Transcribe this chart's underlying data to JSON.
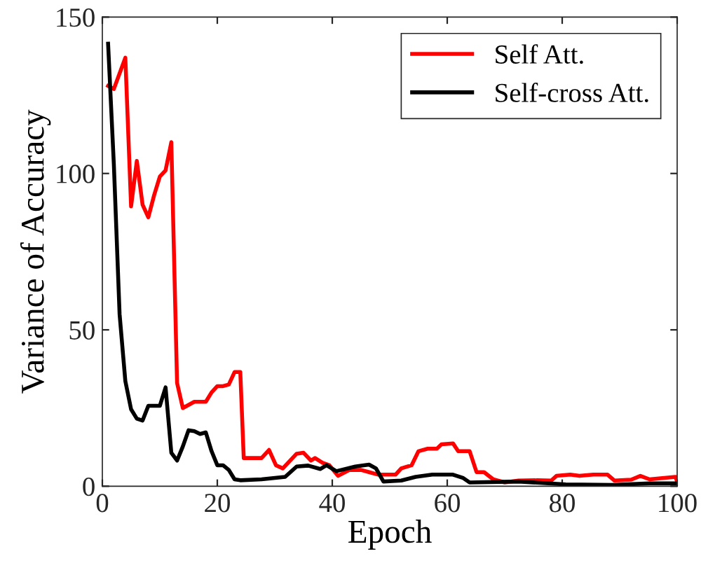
{
  "chart_data": {
    "type": "line",
    "xlabel": "Epoch",
    "ylabel": "Variance of Accuracy",
    "xlim": [
      0,
      100
    ],
    "ylim": [
      0,
      150
    ],
    "xticks": [
      0,
      20,
      40,
      60,
      80,
      100
    ],
    "yticks": [
      0,
      50,
      100,
      150
    ],
    "grid": false,
    "legend": "top right",
    "marker": "none",
    "line_style": "solid",
    "series": [
      {
        "name": "Self Att.",
        "color": "#ff0000",
        "x": [
          1,
          2,
          4,
          5,
          6,
          7,
          8,
          9,
          10,
          11,
          12,
          13,
          14,
          15,
          16,
          18,
          19,
          20,
          21,
          22,
          23,
          24,
          24.6,
          27.7,
          29,
          30.2,
          31.4,
          33.8,
          35,
          36.3,
          37,
          38.3,
          39.5,
          41,
          43,
          45,
          46.4,
          48,
          51,
          52,
          53.8,
          55,
          56.6,
          58.2,
          59,
          61,
          61.9,
          63.9,
          65.1,
          66.4,
          68,
          70,
          72.4,
          75.7,
          78.1,
          79,
          81.4,
          83,
          85.4,
          87.9,
          89.1,
          92,
          93.6,
          95.2,
          99.7,
          100
        ],
        "values": [
          128,
          127,
          137,
          89.5,
          104,
          90,
          86,
          93,
          99,
          101,
          110,
          33,
          25,
          26,
          27,
          27,
          30,
          32,
          32,
          32.5,
          36.5,
          36.5,
          9,
          9,
          11.6,
          6.7,
          5.7,
          10.4,
          10.7,
          8.2,
          9,
          7.5,
          6.7,
          3.3,
          5.2,
          5.2,
          4.5,
          3.7,
          3.7,
          5.7,
          6.7,
          11.2,
          12,
          12,
          13.4,
          13.7,
          11.2,
          11.2,
          4.5,
          4.5,
          2.2,
          1.2,
          1.8,
          1.9,
          1.8,
          3.3,
          3.7,
          3.3,
          3.7,
          3.7,
          1.8,
          2.1,
          3.3,
          2.2,
          3,
          1.5
        ]
      },
      {
        "name": "Self-cross Att.",
        "color": "#000000",
        "x": [
          1,
          2,
          3,
          4,
          5,
          6,
          7,
          8,
          10,
          11,
          12,
          13,
          14,
          15,
          16,
          17,
          18,
          19,
          20,
          21,
          22,
          23,
          24,
          27.7,
          31.8,
          33.8,
          35.8,
          37.9,
          39,
          40.7,
          44,
          46.4,
          47.6,
          48.9,
          52,
          54.5,
          57.4,
          59.4,
          61,
          62.7,
          63.9,
          72.4,
          80.6,
          88.7,
          95.2,
          100
        ],
        "values": [
          141.5,
          103,
          55,
          33.6,
          24.6,
          21.6,
          21,
          25.7,
          25.7,
          31.6,
          10.7,
          8.2,
          12.7,
          17.9,
          17.6,
          16.7,
          17.2,
          11.2,
          6.7,
          6.7,
          5.2,
          2.2,
          1.9,
          2.2,
          3,
          6.3,
          6.6,
          5.5,
          6.7,
          4.8,
          6.3,
          6.9,
          5.7,
          1.5,
          1.8,
          3,
          3.7,
          3.7,
          3.7,
          2.7,
          1.2,
          1.5,
          0.6,
          0.4,
          0.9,
          0.9
        ]
      }
    ]
  }
}
